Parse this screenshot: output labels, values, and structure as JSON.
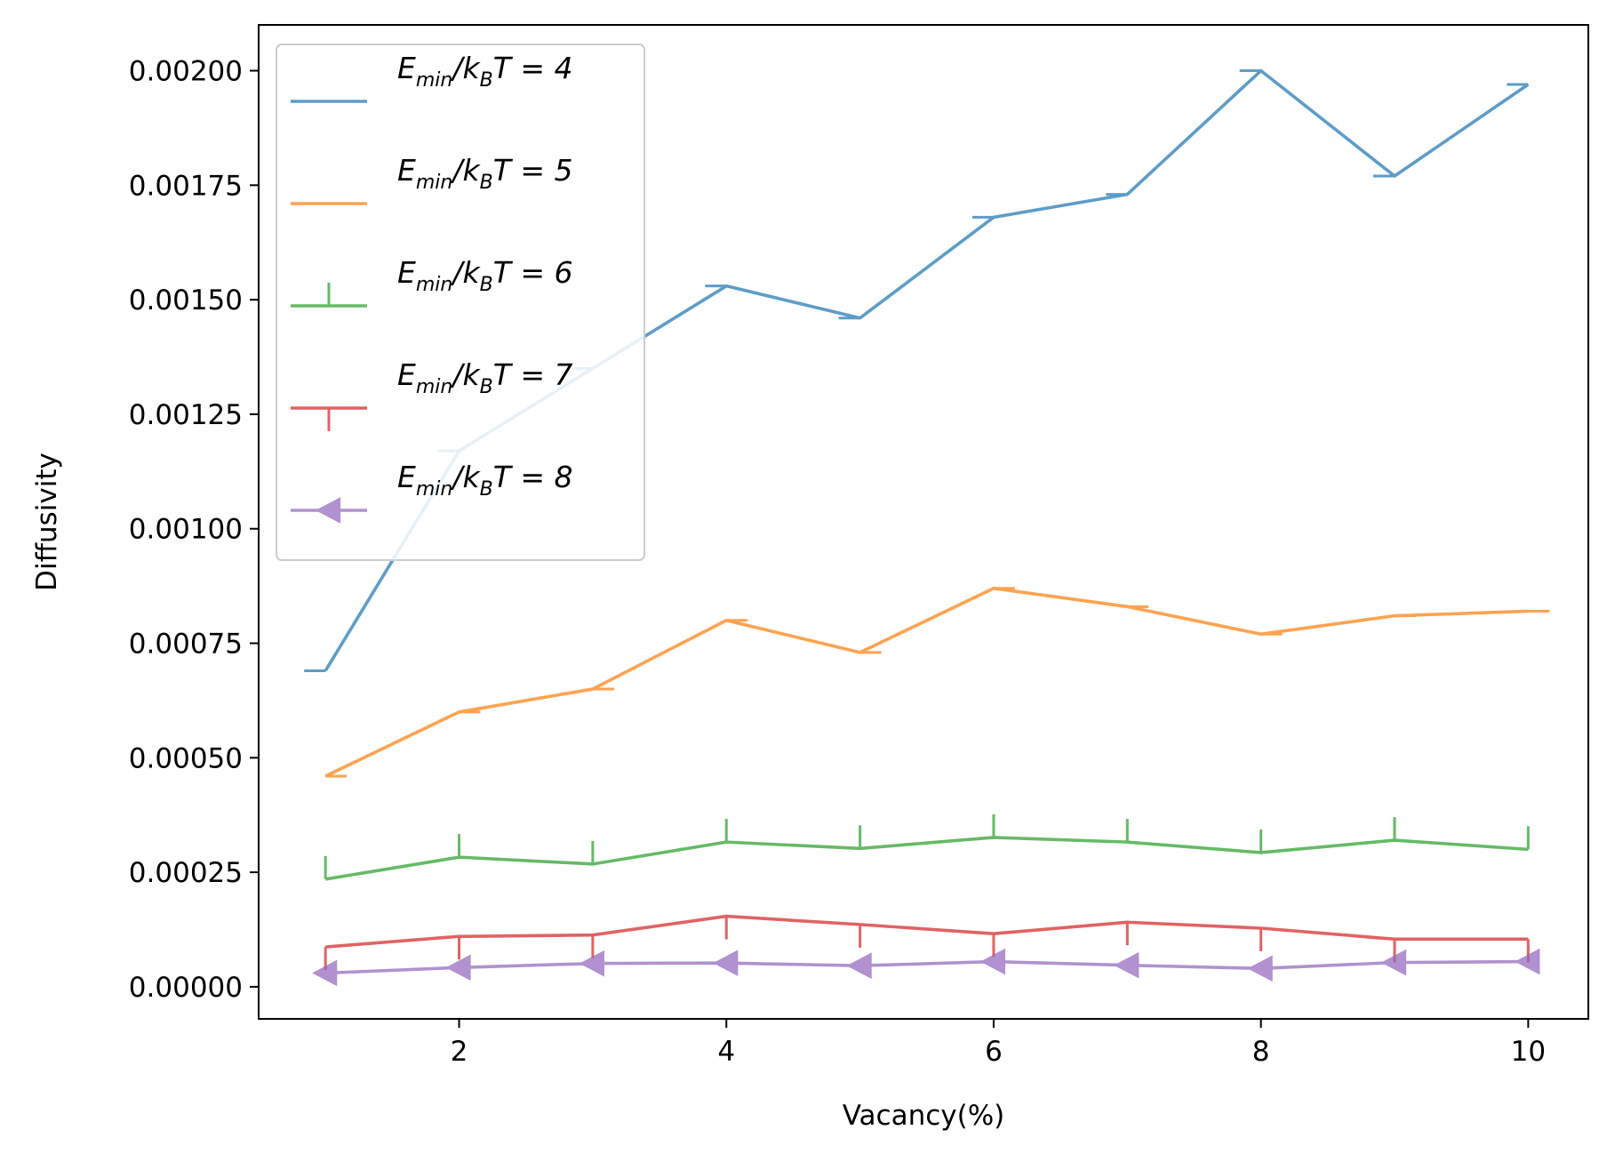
{
  "chart_data": {
    "type": "line",
    "xlabel": "Vacancy(%)",
    "ylabel": "Diffusivity",
    "xlim": [
      0.5,
      10.45
    ],
    "ylim": [
      -7e-05,
      0.0021
    ],
    "xticks": [
      2,
      4,
      6,
      8,
      10
    ],
    "xtick_labels": [
      "2",
      "4",
      "6",
      "8",
      "10"
    ],
    "yticks": [
      0,
      0.00025,
      0.0005,
      0.00075,
      0.001,
      0.00125,
      0.0015,
      0.00175,
      0.002
    ],
    "ytick_labels": [
      "0.00000",
      "0.00025",
      "0.00050",
      "0.00075",
      "0.00100",
      "0.00125",
      "0.00150",
      "0.00175",
      "0.00200"
    ],
    "grid": false,
    "legend_position": "upper-left",
    "x": [
      1,
      2,
      3,
      4,
      5,
      6,
      7,
      8,
      9,
      10
    ],
    "series": [
      {
        "name": "E_min/k_BT =  4",
        "legend": {
          "base": "E",
          "sub1": "min",
          "mid": "/k",
          "sub2": "B",
          "tail": "T =  4"
        },
        "color": "#1f77b4",
        "marker": "tick-left",
        "values": [
          0.00069,
          0.00117,
          0.00135,
          0.00153,
          0.00146,
          0.00168,
          0.00173,
          0.002,
          0.00177,
          0.00197
        ]
      },
      {
        "name": "E_min/k_BT = 5",
        "legend": {
          "base": "E",
          "sub1": "min",
          "mid": "/k",
          "sub2": "B",
          "tail": "T = 5"
        },
        "color": "#ff7f0e",
        "marker": "tick-right",
        "values": [
          0.00046,
          0.0006,
          0.00065,
          0.0008,
          0.00073,
          0.00087,
          0.00083,
          0.00077,
          0.00081,
          0.00082
        ]
      },
      {
        "name": "E_min/k_BT = 6",
        "legend": {
          "base": "E",
          "sub1": "min",
          "mid": "/k",
          "sub2": "B",
          "tail": "T = 6"
        },
        "color": "#2ca02c",
        "marker": "tick-up",
        "values": [
          0.000235,
          0.000283,
          0.000268,
          0.000316,
          0.000302,
          0.000326,
          0.000316,
          0.000293,
          0.00032,
          0.0003
        ]
      },
      {
        "name": "E_min/k_BT = 7",
        "legend": {
          "base": "E",
          "sub1": "min",
          "mid": "/k",
          "sub2": "B",
          "tail": "T = 7"
        },
        "color": "#d62728",
        "marker": "tick-down",
        "values": [
          8.7e-05,
          0.00011,
          0.000113,
          0.000154,
          0.000136,
          0.000116,
          0.000141,
          0.000128,
          0.000104,
          0.000104
        ]
      },
      {
        "name": "E_min/k_BT = 8",
        "legend": {
          "base": "E",
          "sub1": "min",
          "mid": "/k",
          "sub2": "B",
          "tail": "T = 8"
        },
        "color": "#9467bd",
        "marker": "triangle-left",
        "values": [
          3e-05,
          4.2e-05,
          5.1e-05,
          5.2e-05,
          4.6e-05,
          5.5e-05,
          4.7e-05,
          4e-05,
          5.3e-05,
          5.5e-05
        ]
      }
    ]
  }
}
